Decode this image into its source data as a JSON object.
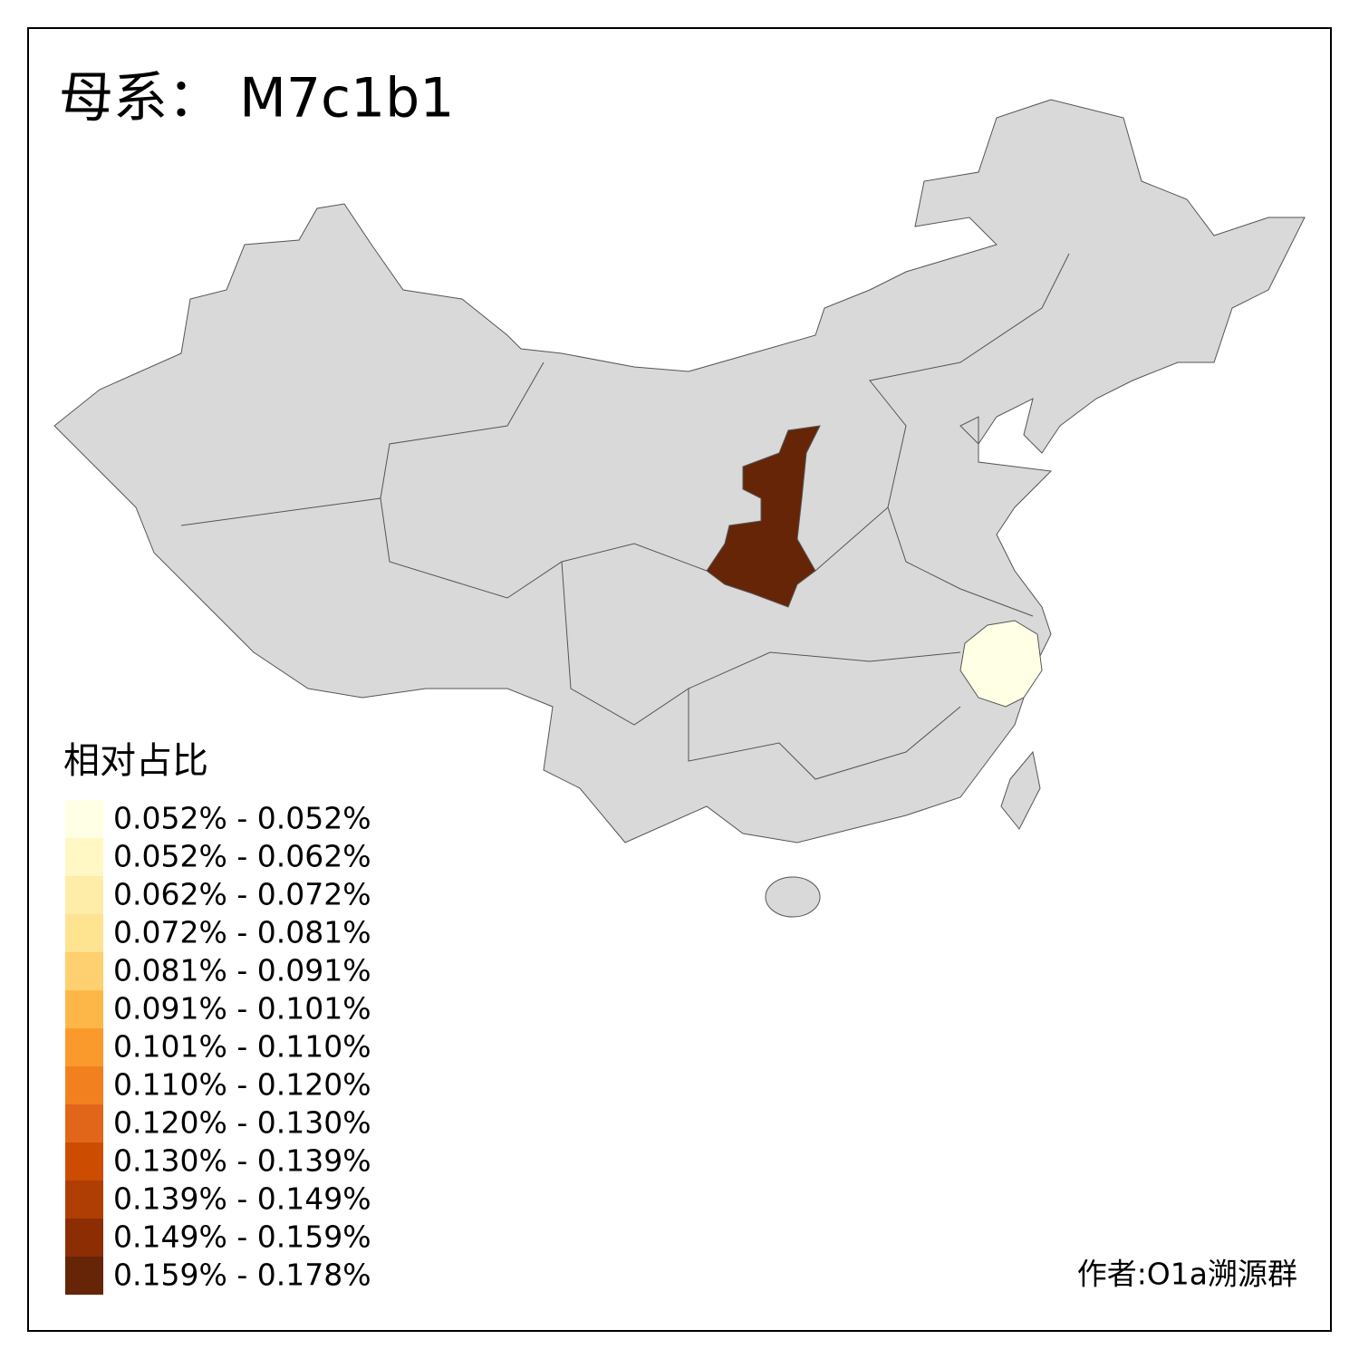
{
  "title": "母系： M7c1b1",
  "legend": {
    "title": "相对占比",
    "items": [
      {
        "label": "0.052% - 0.052%",
        "color": "#FFFFE5"
      },
      {
        "label": "0.052% - 0.062%",
        "color": "#FFF7C4"
      },
      {
        "label": "0.062% - 0.072%",
        "color": "#FEEDA8"
      },
      {
        "label": "0.072% - 0.081%",
        "color": "#FEE391"
      },
      {
        "label": "0.081% - 0.091%",
        "color": "#FED070"
      },
      {
        "label": "0.091% - 0.101%",
        "color": "#FDB748"
      },
      {
        "label": "0.101% - 0.110%",
        "color": "#FB9A2C"
      },
      {
        "label": "0.110% - 0.120%",
        "color": "#F2801F"
      },
      {
        "label": "0.120% - 0.130%",
        "color": "#E1661A"
      },
      {
        "label": "0.130% - 0.139%",
        "color": "#CC4C02"
      },
      {
        "label": "0.139% - 0.149%",
        "color": "#AE3E03"
      },
      {
        "label": "0.149% - 0.159%",
        "color": "#8C2D04"
      },
      {
        "label": "0.159% - 0.178%",
        "color": "#662506"
      }
    ]
  },
  "credit": "作者:O1a溯源群"
}
